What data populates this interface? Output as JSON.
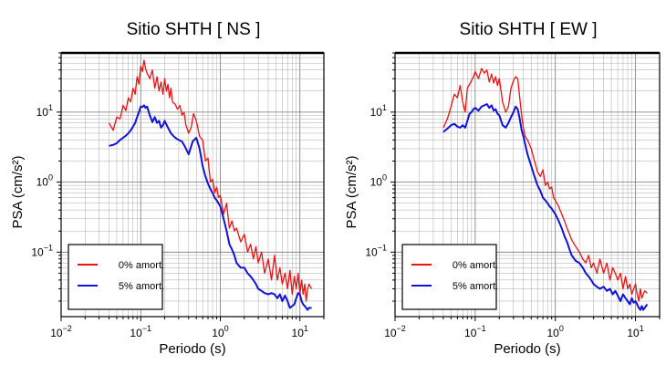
{
  "chart_data": [
    {
      "type": "line",
      "title": "Sitio SHTH [ NS ]",
      "xlabel": "Periodo (s)",
      "ylabel": "PSA (cm/s²)",
      "xscale": "log",
      "yscale": "log",
      "xlim": [
        0.01,
        20
      ],
      "ylim": [
        0.012,
        70
      ],
      "grid": true,
      "legend_position": "bottom-left",
      "x_ticks": [
        {
          "base": "10",
          "exp": "−2",
          "value": 0.01
        },
        {
          "base": "10",
          "exp": "−1",
          "value": 0.1
        },
        {
          "base": "10",
          "exp": "0",
          "value": 1
        },
        {
          "base": "10",
          "exp": "1",
          "value": 10
        }
      ],
      "y_ticks": [
        {
          "base": "10",
          "exp": "−1",
          "value": 0.1
        },
        {
          "base": "10",
          "exp": "0",
          "value": 1
        },
        {
          "base": "10",
          "exp": "1",
          "value": 10
        }
      ],
      "series": [
        {
          "name": "0% amort.",
          "color": "#ee1111",
          "x": [
            0.04,
            0.045,
            0.05,
            0.055,
            0.06,
            0.065,
            0.07,
            0.075,
            0.08,
            0.085,
            0.09,
            0.095,
            0.1,
            0.105,
            0.11,
            0.115,
            0.12,
            0.13,
            0.14,
            0.15,
            0.16,
            0.17,
            0.18,
            0.19,
            0.2,
            0.21,
            0.22,
            0.23,
            0.24,
            0.25,
            0.27,
            0.29,
            0.31,
            0.33,
            0.35,
            0.37,
            0.4,
            0.43,
            0.46,
            0.5,
            0.55,
            0.6,
            0.65,
            0.7,
            0.75,
            0.8,
            0.85,
            0.9,
            0.95,
            1.0,
            1.1,
            1.2,
            1.3,
            1.4,
            1.5,
            1.6,
            1.8,
            2.0,
            2.2,
            2.4,
            2.6,
            2.8,
            3.0,
            3.3,
            3.6,
            4.0,
            4.4,
            4.8,
            5.2,
            5.6,
            6.0,
            6.5,
            7.0,
            7.5,
            8.0,
            8.5,
            9.0,
            9.5,
            10.0,
            10.5,
            11.0,
            11.5,
            12.0,
            12.5,
            13.0,
            14.0
          ],
          "y": [
            7.0,
            5.5,
            8.5,
            8.0,
            12.5,
            10.5,
            16.0,
            14.0,
            22.0,
            18.0,
            32.0,
            25.0,
            45.0,
            38.0,
            55.0,
            42.0,
            36.0,
            30.0,
            40.0,
            22.0,
            32.0,
            20.0,
            27.0,
            18.0,
            30.0,
            20.0,
            25.0,
            16.0,
            22.0,
            14.0,
            13.0,
            11.0,
            12.5,
            9.0,
            10.0,
            6.5,
            5.0,
            6.0,
            9.5,
            7.5,
            4.5,
            4.0,
            2.0,
            2.2,
            1.0,
            1.1,
            0.7,
            0.85,
            0.6,
            0.65,
            0.35,
            0.5,
            0.22,
            0.28,
            0.2,
            0.22,
            0.14,
            0.18,
            0.1,
            0.13,
            0.08,
            0.12,
            0.07,
            0.1,
            0.05,
            0.08,
            0.04,
            0.09,
            0.04,
            0.06,
            0.035,
            0.05,
            0.03,
            0.055,
            0.025,
            0.045,
            0.03,
            0.05,
            0.025,
            0.04,
            0.025,
            0.035,
            0.02,
            0.03,
            0.035,
            0.03
          ]
        },
        {
          "name": "5% amort.",
          "color": "#1111dd",
          "x": [
            0.04,
            0.045,
            0.05,
            0.055,
            0.06,
            0.065,
            0.07,
            0.075,
            0.08,
            0.085,
            0.09,
            0.095,
            0.1,
            0.105,
            0.11,
            0.115,
            0.12,
            0.13,
            0.14,
            0.15,
            0.16,
            0.17,
            0.18,
            0.19,
            0.2,
            0.22,
            0.24,
            0.26,
            0.28,
            0.3,
            0.33,
            0.36,
            0.4,
            0.45,
            0.5,
            0.55,
            0.6,
            0.65,
            0.7,
            0.75,
            0.8,
            0.85,
            0.9,
            0.95,
            1.0,
            1.1,
            1.2,
            1.3,
            1.4,
            1.5,
            1.6,
            1.8,
            2.0,
            2.2,
            2.4,
            2.6,
            2.8,
            3.0,
            3.3,
            3.6,
            4.0,
            4.4,
            4.8,
            5.2,
            5.6,
            6.0,
            6.5,
            7.0,
            7.5,
            8.0,
            8.5,
            9.0,
            9.5,
            10.0,
            10.5,
            11.0,
            11.5,
            12.0,
            12.5,
            13.0,
            14.0
          ],
          "y": [
            3.3,
            3.4,
            3.6,
            4.0,
            4.3,
            4.6,
            5.0,
            5.5,
            6.2,
            7.0,
            8.5,
            10.0,
            12.0,
            11.8,
            12.5,
            11.5,
            12.0,
            9.0,
            7.2,
            8.5,
            7.0,
            7.5,
            6.0,
            6.5,
            7.5,
            6.0,
            5.0,
            4.5,
            4.2,
            4.0,
            3.8,
            3.2,
            2.5,
            3.8,
            4.3,
            3.0,
            1.7,
            1.2,
            0.95,
            0.8,
            0.7,
            0.6,
            0.55,
            0.5,
            0.45,
            0.3,
            0.2,
            0.13,
            0.11,
            0.09,
            0.07,
            0.06,
            0.06,
            0.05,
            0.045,
            0.04,
            0.035,
            0.03,
            0.028,
            0.026,
            0.025,
            0.026,
            0.025,
            0.022,
            0.025,
            0.02,
            0.024,
            0.02,
            0.016,
            0.017,
            0.018,
            0.022,
            0.026,
            0.025,
            0.02,
            0.018,
            0.017,
            0.016,
            0.015,
            0.016,
            0.016
          ]
        }
      ]
    },
    {
      "type": "line",
      "title": "Sitio SHTH [ EW ]",
      "xlabel": "Periodo (s)",
      "ylabel": "PSA (cm/s²)",
      "xscale": "log",
      "yscale": "log",
      "xlim": [
        0.01,
        20
      ],
      "ylim": [
        0.012,
        70
      ],
      "grid": true,
      "legend_position": "bottom-left",
      "x_ticks": [
        {
          "base": "10",
          "exp": "−2",
          "value": 0.01
        },
        {
          "base": "10",
          "exp": "−1",
          "value": 0.1
        },
        {
          "base": "10",
          "exp": "0",
          "value": 1
        },
        {
          "base": "10",
          "exp": "1",
          "value": 10
        }
      ],
      "y_ticks": [
        {
          "base": "10",
          "exp": "−1",
          "value": 0.1
        },
        {
          "base": "10",
          "exp": "0",
          "value": 1
        },
        {
          "base": "10",
          "exp": "1",
          "value": 10
        }
      ],
      "series": [
        {
          "name": "0% amort.",
          "color": "#ee1111",
          "x": [
            0.04,
            0.045,
            0.05,
            0.055,
            0.06,
            0.065,
            0.07,
            0.075,
            0.08,
            0.085,
            0.09,
            0.095,
            0.1,
            0.11,
            0.12,
            0.13,
            0.14,
            0.15,
            0.16,
            0.17,
            0.18,
            0.19,
            0.2,
            0.22,
            0.24,
            0.26,
            0.28,
            0.3,
            0.32,
            0.34,
            0.36,
            0.38,
            0.4,
            0.42,
            0.45,
            0.5,
            0.55,
            0.6,
            0.65,
            0.7,
            0.75,
            0.8,
            0.85,
            0.9,
            0.95,
            1.0,
            1.1,
            1.2,
            1.3,
            1.4,
            1.5,
            1.6,
            1.8,
            2.0,
            2.2,
            2.4,
            2.6,
            2.8,
            3.0,
            3.3,
            3.6,
            4.0,
            4.4,
            4.8,
            5.2,
            5.6,
            6.0,
            6.5,
            7.0,
            7.5,
            8.0,
            8.5,
            9.0,
            9.5,
            10.0,
            10.5,
            11.0,
            11.5,
            12.0,
            12.5,
            13.0,
            14.0
          ],
          "y": [
            6.0,
            8.0,
            12.0,
            18.0,
            16.0,
            24.0,
            14.0,
            10.0,
            22.0,
            25.0,
            28.0,
            32.0,
            38.0,
            30.0,
            42.0,
            36.0,
            40.0,
            27.0,
            35.0,
            26.0,
            32.0,
            24.0,
            30.0,
            14.0,
            10.0,
            12.0,
            22.0,
            28.0,
            32.0,
            30.0,
            16.0,
            9.0,
            6.0,
            4.5,
            4.0,
            3.0,
            2.0,
            1.4,
            1.2,
            1.5,
            0.9,
            1.0,
            0.8,
            0.85,
            0.6,
            0.55,
            0.45,
            0.35,
            0.28,
            0.22,
            0.18,
            0.15,
            0.12,
            0.1,
            0.08,
            0.07,
            0.09,
            0.06,
            0.07,
            0.05,
            0.08,
            0.05,
            0.07,
            0.04,
            0.06,
            0.05,
            0.04,
            0.05,
            0.03,
            0.045,
            0.03,
            0.035,
            0.025,
            0.03,
            0.035,
            0.025,
            0.02,
            0.03,
            0.022,
            0.025,
            0.028,
            0.026
          ]
        },
        {
          "name": "5% amort.",
          "color": "#1111dd",
          "x": [
            0.04,
            0.045,
            0.05,
            0.055,
            0.06,
            0.065,
            0.07,
            0.075,
            0.08,
            0.085,
            0.09,
            0.095,
            0.1,
            0.11,
            0.12,
            0.13,
            0.14,
            0.15,
            0.16,
            0.17,
            0.18,
            0.19,
            0.2,
            0.22,
            0.24,
            0.26,
            0.28,
            0.3,
            0.32,
            0.34,
            0.36,
            0.38,
            0.4,
            0.45,
            0.5,
            0.55,
            0.6,
            0.65,
            0.7,
            0.75,
            0.8,
            0.85,
            0.9,
            0.95,
            1.0,
            1.1,
            1.2,
            1.3,
            1.4,
            1.5,
            1.6,
            1.8,
            2.0,
            2.2,
            2.4,
            2.6,
            2.8,
            3.0,
            3.3,
            3.6,
            4.0,
            4.4,
            4.8,
            5.2,
            5.6,
            6.0,
            6.5,
            7.0,
            7.5,
            8.0,
            8.5,
            9.0,
            9.5,
            10.0,
            10.5,
            11.0,
            11.5,
            12.0,
            12.5,
            13.0,
            14.0
          ],
          "y": [
            5.2,
            5.8,
            6.5,
            6.8,
            6.2,
            6.0,
            6.5,
            6.0,
            7.5,
            9.5,
            10.0,
            11.0,
            11.5,
            10.5,
            12.0,
            12.5,
            13.0,
            11.5,
            12.5,
            10.5,
            11.0,
            9.5,
            9.0,
            6.5,
            6.0,
            7.0,
            8.5,
            10.0,
            12.0,
            11.0,
            8.0,
            5.5,
            4.5,
            2.5,
            1.7,
            1.2,
            0.9,
            0.75,
            0.6,
            0.55,
            0.5,
            0.45,
            0.42,
            0.38,
            0.35,
            0.28,
            0.22,
            0.17,
            0.14,
            0.11,
            0.09,
            0.075,
            0.07,
            0.06,
            0.05,
            0.045,
            0.04,
            0.035,
            0.032,
            0.03,
            0.032,
            0.028,
            0.03,
            0.025,
            0.028,
            0.024,
            0.02,
            0.025,
            0.022,
            0.02,
            0.018,
            0.022,
            0.019,
            0.02,
            0.018,
            0.016,
            0.015,
            0.017,
            0.015,
            0.016,
            0.018
          ]
        }
      ]
    }
  ]
}
